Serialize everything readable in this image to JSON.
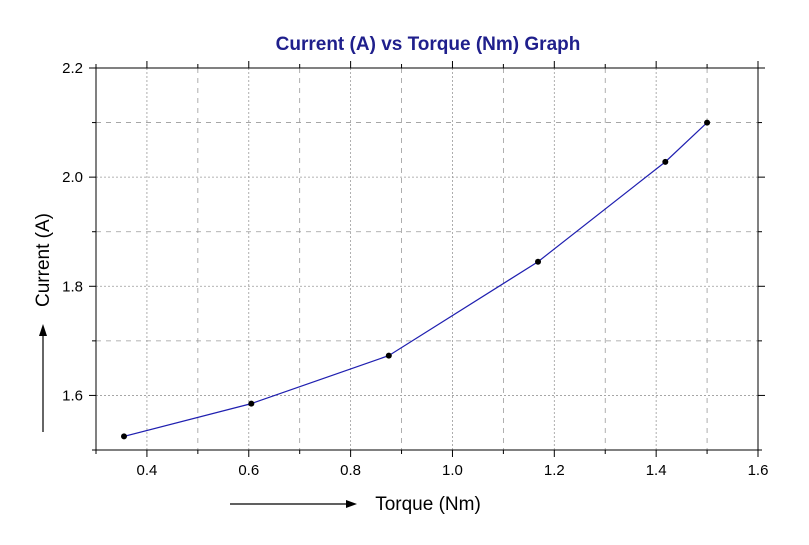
{
  "chart_data": {
    "type": "line",
    "title": "Current (A)  vs  Torque (Nm) Graph",
    "xlabel": "Torque (Nm)",
    "ylabel": "Current (A)",
    "xlim": [
      0.3,
      1.6
    ],
    "ylim": [
      1.5,
      2.2
    ],
    "xticks": [
      "0.4",
      "0.6",
      "0.8",
      "1.0",
      "1.2",
      "1.4",
      "1.6"
    ],
    "yticks": [
      "1.6",
      "1.8",
      "2.0",
      "2.2"
    ],
    "grid": true,
    "series": [
      {
        "x": [
          0.355,
          0.605,
          0.875,
          1.168,
          1.418,
          1.5
        ],
        "y": [
          1.525,
          1.585,
          1.673,
          1.845,
          2.028,
          2.1
        ]
      }
    ],
    "colors": {
      "line": "#1f1fb0",
      "marker": "#000000",
      "title": "#1f1f8c",
      "grid": "#9a9a9a"
    },
    "axis_arrows": true
  }
}
